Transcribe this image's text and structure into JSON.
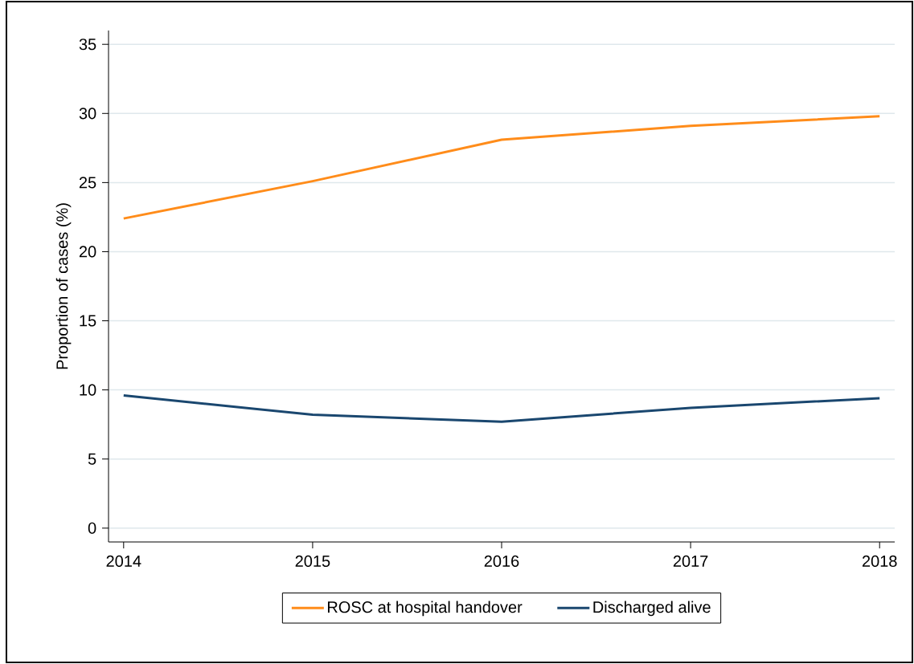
{
  "chart_data": {
    "type": "line",
    "ylabel": "Proportion of cases (%)",
    "x": [
      2014,
      2015,
      2016,
      2017,
      2018
    ],
    "series": [
      {
        "name": "ROSC at hospital handover",
        "color": "#ff8c1a",
        "values": [
          22.4,
          25.1,
          28.1,
          29.1,
          29.8
        ]
      },
      {
        "name": "Discharged alive",
        "color": "#1a476f",
        "values": [
          9.6,
          8.2,
          7.7,
          8.7,
          9.4
        ]
      }
    ],
    "xlim": [
      2013.92,
      2018.08
    ],
    "ylim": [
      -1,
      36
    ],
    "xticks": [
      2014,
      2015,
      2016,
      2017,
      2018
    ],
    "yticks": [
      0,
      5,
      10,
      15,
      20,
      25,
      30,
      35
    ],
    "grid": "y",
    "legend": "bottom",
    "marker": "none",
    "line_style": "solid"
  }
}
